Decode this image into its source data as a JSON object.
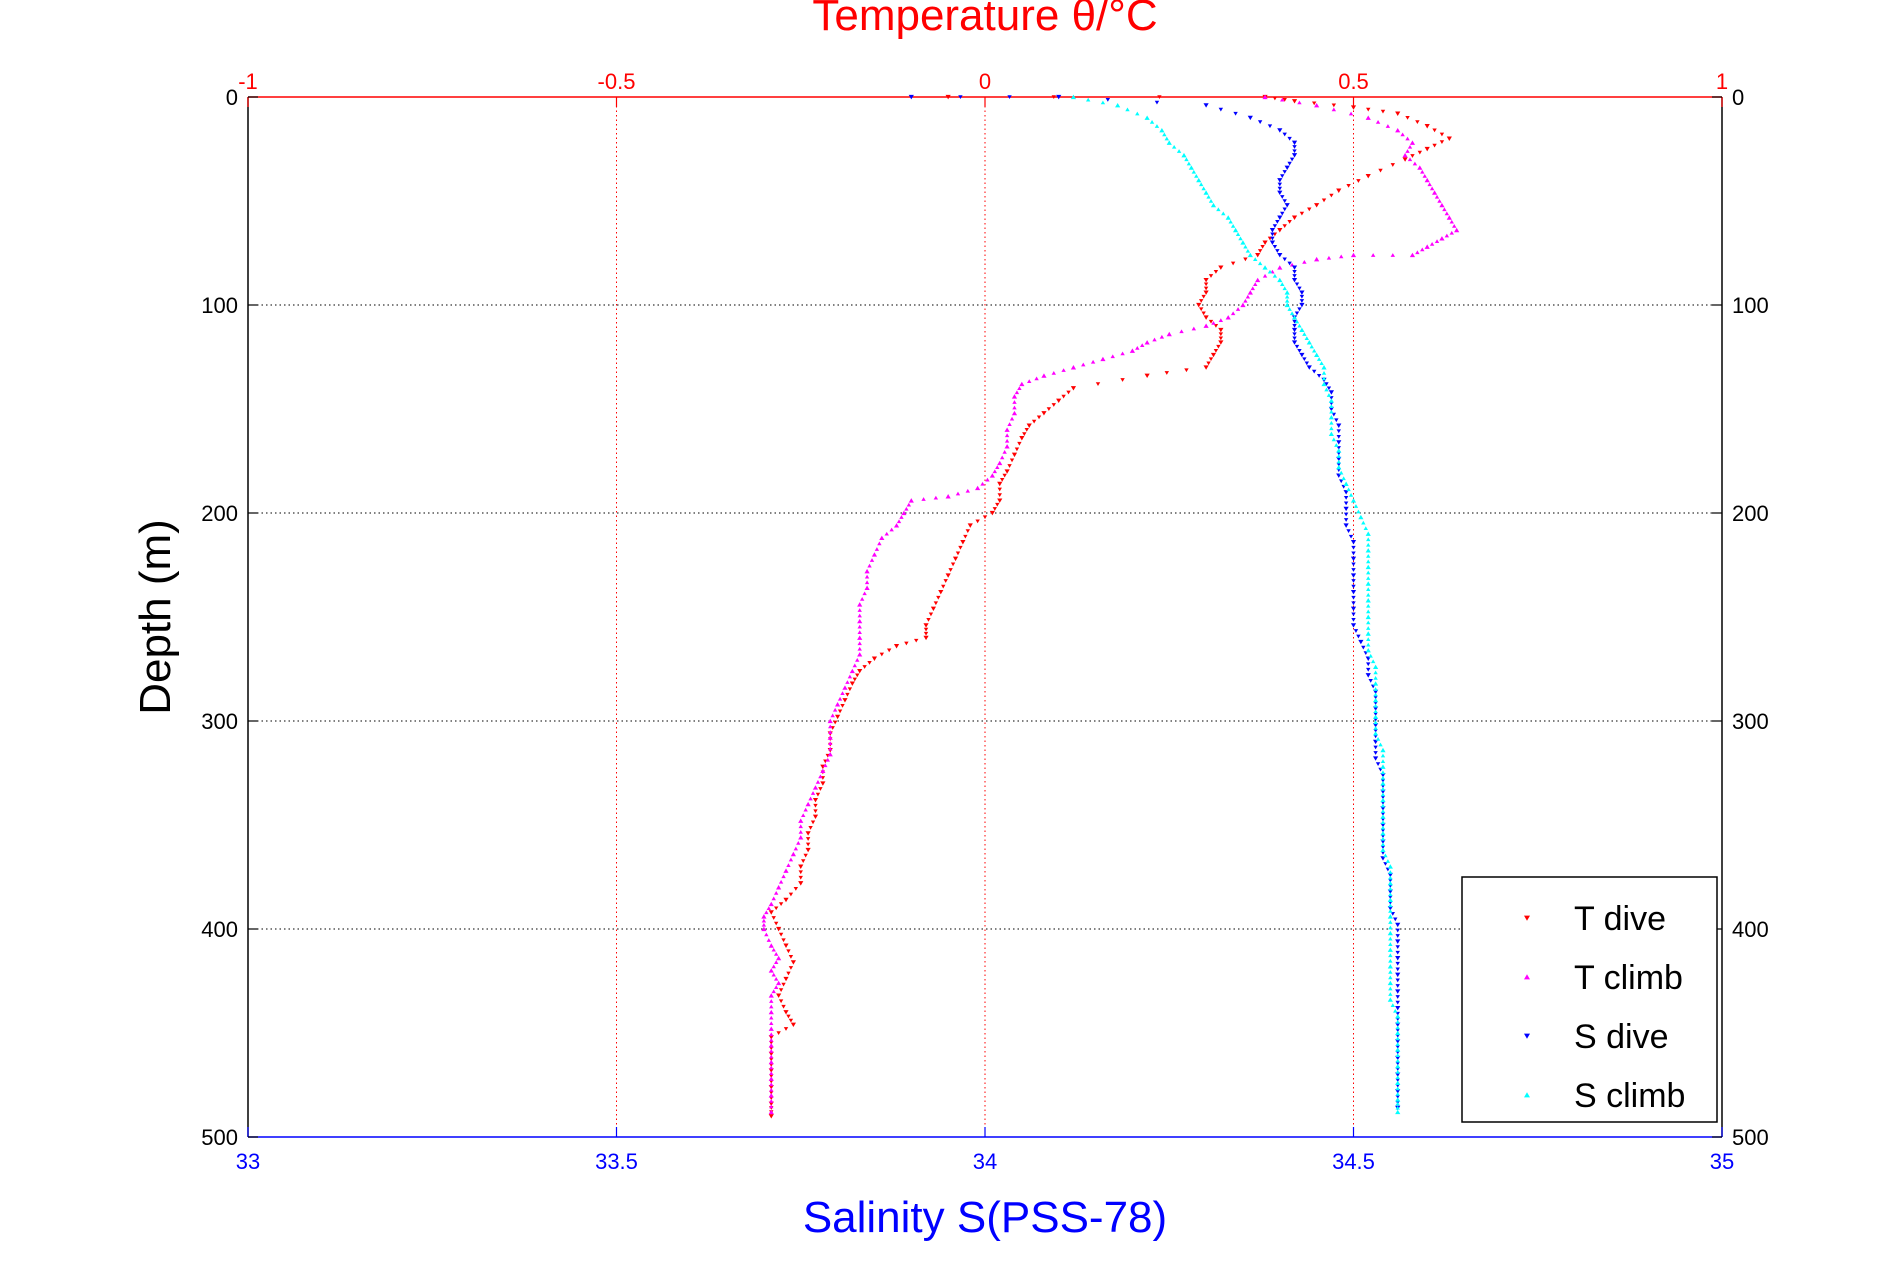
{
  "chart_data": {
    "type": "scatter",
    "title": "Temperature θ/°C",
    "xlabel": "Salinity S(PSS-78)",
    "ylabel": "Depth (m)",
    "x_top_ticks": [
      "-1",
      "-0.5",
      "0",
      "0.5",
      "1"
    ],
    "x_top_range": [
      -1,
      1
    ],
    "x_bottom_ticks": [
      "33",
      "33.5",
      "34",
      "34.5",
      "35"
    ],
    "x_bottom_range": [
      33,
      35
    ],
    "y_ticks": [
      "0",
      "100",
      "200",
      "300",
      "400",
      "500"
    ],
    "y_range": [
      0,
      500
    ],
    "y_reversed": true,
    "grid": true,
    "legend_position": "bottom-right",
    "series": [
      {
        "name": "T dive",
        "axis": "temperature",
        "color": "#ff0000",
        "marker": "triangle-down",
        "points": [
          [
            -0.05,
            0
          ],
          [
            0.38,
            0
          ],
          [
            0.42,
            2
          ],
          [
            0.5,
            5
          ],
          [
            0.56,
            8
          ],
          [
            0.6,
            14
          ],
          [
            0.63,
            20
          ],
          [
            0.6,
            25
          ],
          [
            0.57,
            30
          ],
          [
            0.52,
            38
          ],
          [
            0.48,
            45
          ],
          [
            0.45,
            52
          ],
          [
            0.42,
            58
          ],
          [
            0.4,
            64
          ],
          [
            0.38,
            70
          ],
          [
            0.37,
            76
          ],
          [
            0.32,
            82
          ],
          [
            0.3,
            88
          ],
          [
            0.3,
            94
          ],
          [
            0.29,
            100
          ],
          [
            0.3,
            106
          ],
          [
            0.32,
            112
          ],
          [
            0.32,
            118
          ],
          [
            0.31,
            124
          ],
          [
            0.3,
            130
          ],
          [
            0.22,
            134
          ],
          [
            0.12,
            140
          ],
          [
            0.1,
            146
          ],
          [
            0.08,
            152
          ],
          [
            0.06,
            158
          ],
          [
            0.05,
            164
          ],
          [
            0.04,
            172
          ],
          [
            0.03,
            180
          ],
          [
            0.02,
            186
          ],
          [
            0.02,
            194
          ],
          [
            0.01,
            200
          ],
          [
            -0.02,
            206
          ],
          [
            -0.03,
            214
          ],
          [
            -0.04,
            222
          ],
          [
            -0.05,
            230
          ],
          [
            -0.06,
            238
          ],
          [
            -0.07,
            246
          ],
          [
            -0.08,
            254
          ],
          [
            -0.08,
            260
          ],
          [
            -0.12,
            264
          ],
          [
            -0.15,
            270
          ],
          [
            -0.17,
            276
          ],
          [
            -0.18,
            282
          ],
          [
            -0.19,
            290
          ],
          [
            -0.2,
            298
          ],
          [
            -0.21,
            306
          ],
          [
            -0.21,
            314
          ],
          [
            -0.22,
            322
          ],
          [
            -0.22,
            330
          ],
          [
            -0.23,
            338
          ],
          [
            -0.23,
            346
          ],
          [
            -0.24,
            354
          ],
          [
            -0.24,
            362
          ],
          [
            -0.25,
            370
          ],
          [
            -0.25,
            378
          ],
          [
            -0.27,
            386
          ],
          [
            -0.29,
            392
          ],
          [
            -0.28,
            400
          ],
          [
            -0.27,
            408
          ],
          [
            -0.26,
            416
          ],
          [
            -0.27,
            424
          ],
          [
            -0.28,
            432
          ],
          [
            -0.27,
            440
          ],
          [
            -0.26,
            446
          ],
          [
            -0.29,
            452
          ],
          [
            -0.29,
            460
          ],
          [
            -0.29,
            468
          ],
          [
            -0.29,
            476
          ],
          [
            -0.29,
            484
          ],
          [
            -0.29,
            490
          ]
        ]
      },
      {
        "name": "T climb",
        "axis": "temperature",
        "color": "#ff00ff",
        "marker": "triangle-up",
        "points": [
          [
            0.38,
            0
          ],
          [
            0.45,
            4
          ],
          [
            0.52,
            10
          ],
          [
            0.56,
            16
          ],
          [
            0.58,
            22
          ],
          [
            0.57,
            28
          ],
          [
            0.59,
            34
          ],
          [
            0.6,
            40
          ],
          [
            0.61,
            46
          ],
          [
            0.62,
            52
          ],
          [
            0.63,
            58
          ],
          [
            0.64,
            64
          ],
          [
            0.62,
            68
          ],
          [
            0.6,
            72
          ],
          [
            0.58,
            76
          ],
          [
            0.5,
            76
          ],
          [
            0.45,
            78
          ],
          [
            0.4,
            82
          ],
          [
            0.37,
            88
          ],
          [
            0.36,
            94
          ],
          [
            0.35,
            100
          ],
          [
            0.33,
            106
          ],
          [
            0.3,
            110
          ],
          [
            0.25,
            114
          ],
          [
            0.22,
            118
          ],
          [
            0.2,
            122
          ],
          [
            0.16,
            126
          ],
          [
            0.12,
            130
          ],
          [
            0.08,
            134
          ],
          [
            0.05,
            138
          ],
          [
            0.04,
            144
          ],
          [
            0.04,
            152
          ],
          [
            0.03,
            160
          ],
          [
            0.03,
            168
          ],
          [
            0.02,
            176
          ],
          [
            0.01,
            182
          ],
          [
            -0.01,
            188
          ],
          [
            -0.05,
            192
          ],
          [
            -0.1,
            194
          ],
          [
            -0.11,
            200
          ],
          [
            -0.12,
            206
          ],
          [
            -0.14,
            212
          ],
          [
            -0.15,
            220
          ],
          [
            -0.16,
            228
          ],
          [
            -0.16,
            236
          ],
          [
            -0.17,
            244
          ],
          [
            -0.17,
            252
          ],
          [
            -0.17,
            260
          ],
          [
            -0.17,
            268
          ],
          [
            -0.18,
            276
          ],
          [
            -0.19,
            284
          ],
          [
            -0.2,
            292
          ],
          [
            -0.21,
            300
          ],
          [
            -0.21,
            308
          ],
          [
            -0.21,
            316
          ],
          [
            -0.22,
            324
          ],
          [
            -0.23,
            332
          ],
          [
            -0.24,
            340
          ],
          [
            -0.25,
            348
          ],
          [
            -0.25,
            356
          ],
          [
            -0.26,
            364
          ],
          [
            -0.27,
            372
          ],
          [
            -0.28,
            380
          ],
          [
            -0.29,
            388
          ],
          [
            -0.3,
            394
          ],
          [
            -0.3,
            400
          ],
          [
            -0.29,
            408
          ],
          [
            -0.28,
            414
          ],
          [
            -0.29,
            420
          ],
          [
            -0.28,
            426
          ],
          [
            -0.29,
            432
          ],
          [
            -0.29,
            440
          ],
          [
            -0.29,
            448
          ],
          [
            -0.29,
            456
          ],
          [
            -0.29,
            464
          ],
          [
            -0.29,
            472
          ],
          [
            -0.29,
            480
          ],
          [
            -0.29,
            488
          ]
        ]
      },
      {
        "name": "S dive",
        "axis": "salinity",
        "color": "#0000ff",
        "marker": "triangle-down",
        "points": [
          [
            33.9,
            0
          ],
          [
            34.1,
            0
          ],
          [
            34.3,
            4
          ],
          [
            34.36,
            10
          ],
          [
            34.4,
            16
          ],
          [
            34.42,
            22
          ],
          [
            34.42,
            28
          ],
          [
            34.41,
            34
          ],
          [
            34.4,
            40
          ],
          [
            34.4,
            46
          ],
          [
            34.41,
            52
          ],
          [
            34.4,
            58
          ],
          [
            34.39,
            64
          ],
          [
            34.39,
            70
          ],
          [
            34.4,
            76
          ],
          [
            34.42,
            82
          ],
          [
            34.42,
            88
          ],
          [
            34.43,
            94
          ],
          [
            34.43,
            100
          ],
          [
            34.42,
            106
          ],
          [
            34.42,
            112
          ],
          [
            34.42,
            118
          ],
          [
            34.43,
            124
          ],
          [
            34.44,
            130
          ],
          [
            34.46,
            136
          ],
          [
            34.47,
            142
          ],
          [
            34.47,
            150
          ],
          [
            34.48,
            158
          ],
          [
            34.48,
            166
          ],
          [
            34.48,
            174
          ],
          [
            34.48,
            182
          ],
          [
            34.49,
            190
          ],
          [
            34.49,
            198
          ],
          [
            34.49,
            206
          ],
          [
            34.5,
            214
          ],
          [
            34.5,
            222
          ],
          [
            34.5,
            230
          ],
          [
            34.5,
            238
          ],
          [
            34.5,
            246
          ],
          [
            34.5,
            254
          ],
          [
            34.51,
            262
          ],
          [
            34.52,
            270
          ],
          [
            34.52,
            278
          ],
          [
            34.53,
            286
          ],
          [
            34.53,
            294
          ],
          [
            34.53,
            302
          ],
          [
            34.53,
            310
          ],
          [
            34.53,
            318
          ],
          [
            34.54,
            326
          ],
          [
            34.54,
            334
          ],
          [
            34.54,
            342
          ],
          [
            34.54,
            350
          ],
          [
            34.54,
            358
          ],
          [
            34.54,
            366
          ],
          [
            34.55,
            374
          ],
          [
            34.55,
            382
          ],
          [
            34.55,
            390
          ],
          [
            34.56,
            398
          ],
          [
            34.56,
            406
          ],
          [
            34.56,
            414
          ],
          [
            34.56,
            422
          ],
          [
            34.56,
            430
          ],
          [
            34.56,
            438
          ],
          [
            34.56,
            446
          ],
          [
            34.56,
            454
          ],
          [
            34.56,
            462
          ],
          [
            34.56,
            470
          ],
          [
            34.56,
            478
          ],
          [
            34.56,
            486
          ]
        ]
      },
      {
        "name": "S climb",
        "axis": "salinity",
        "color": "#00ffff",
        "marker": "triangle-up",
        "points": [
          [
            34.12,
            0
          ],
          [
            34.18,
            4
          ],
          [
            34.22,
            10
          ],
          [
            34.24,
            16
          ],
          [
            34.25,
            22
          ],
          [
            34.27,
            28
          ],
          [
            34.28,
            34
          ],
          [
            34.29,
            40
          ],
          [
            34.3,
            46
          ],
          [
            34.31,
            52
          ],
          [
            34.33,
            58
          ],
          [
            34.34,
            64
          ],
          [
            34.35,
            70
          ],
          [
            34.36,
            76
          ],
          [
            34.38,
            82
          ],
          [
            34.4,
            88
          ],
          [
            34.41,
            94
          ],
          [
            34.41,
            100
          ],
          [
            34.42,
            106
          ],
          [
            34.43,
            112
          ],
          [
            34.44,
            118
          ],
          [
            34.45,
            124
          ],
          [
            34.46,
            130
          ],
          [
            34.46,
            138
          ],
          [
            34.47,
            146
          ],
          [
            34.47,
            154
          ],
          [
            34.47,
            162
          ],
          [
            34.48,
            170
          ],
          [
            34.48,
            178
          ],
          [
            34.49,
            186
          ],
          [
            34.5,
            194
          ],
          [
            34.51,
            202
          ],
          [
            34.52,
            210
          ],
          [
            34.52,
            218
          ],
          [
            34.52,
            226
          ],
          [
            34.52,
            234
          ],
          [
            34.52,
            242
          ],
          [
            34.52,
            250
          ],
          [
            34.52,
            258
          ],
          [
            34.52,
            266
          ],
          [
            34.53,
            274
          ],
          [
            34.53,
            282
          ],
          [
            34.53,
            290
          ],
          [
            34.53,
            298
          ],
          [
            34.53,
            306
          ],
          [
            34.54,
            314
          ],
          [
            34.54,
            322
          ],
          [
            34.54,
            330
          ],
          [
            34.54,
            338
          ],
          [
            34.54,
            346
          ],
          [
            34.54,
            354
          ],
          [
            34.54,
            362
          ],
          [
            34.55,
            370
          ],
          [
            34.55,
            378
          ],
          [
            34.55,
            386
          ],
          [
            34.55,
            394
          ],
          [
            34.55,
            402
          ],
          [
            34.55,
            410
          ],
          [
            34.55,
            418
          ],
          [
            34.55,
            426
          ],
          [
            34.55,
            434
          ],
          [
            34.56,
            442
          ],
          [
            34.56,
            450
          ],
          [
            34.56,
            458
          ],
          [
            34.56,
            466
          ],
          [
            34.56,
            474
          ],
          [
            34.56,
            482
          ],
          [
            34.56,
            488
          ]
        ]
      }
    ]
  }
}
